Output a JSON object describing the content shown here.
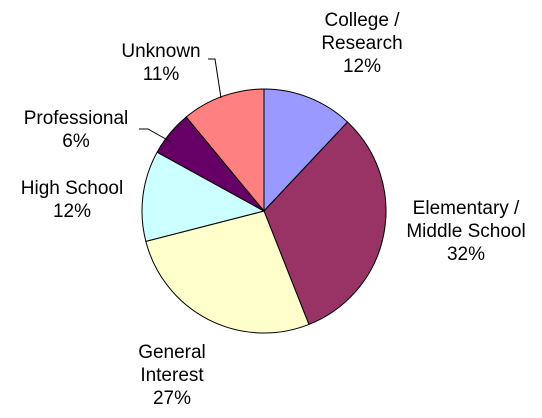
{
  "chart_data": {
    "type": "pie",
    "start_angle_deg": 0,
    "direction": "clockwise",
    "slices": [
      {
        "label": [
          "College /",
          "Research"
        ],
        "pct_label": "12%",
        "value": 12,
        "color": "#9999FF"
      },
      {
        "label": [
          "Elementary /",
          "Middle School"
        ],
        "pct_label": "32%",
        "value": 32,
        "color": "#993366"
      },
      {
        "label": [
          "General",
          "Interest"
        ],
        "pct_label": "27%",
        "value": 27,
        "color": "#FFFFCC"
      },
      {
        "label": [
          "High School"
        ],
        "pct_label": "12%",
        "value": 12,
        "color": "#CCFFFF"
      },
      {
        "label": [
          "Professional"
        ],
        "pct_label": "6%",
        "value": 6,
        "color": "#660066"
      },
      {
        "label": [
          "Unknown"
        ],
        "pct_label": "11%",
        "value": 11,
        "color": "#FF8080"
      }
    ]
  }
}
